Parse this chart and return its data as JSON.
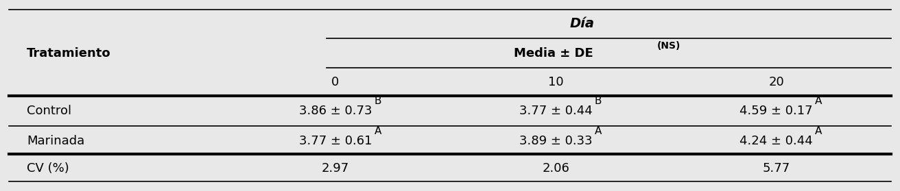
{
  "title_col": "Tratamiento",
  "dia_header": "Día",
  "media_header": "Media ± DE",
  "media_superscript": "(NS)",
  "day_cols": [
    "0",
    "10",
    "20"
  ],
  "rows": [
    {
      "label": "Control",
      "values": [
        "3.86 ± 0.73",
        "3.77 ± 0.44",
        "4.59 ± 0.17"
      ],
      "superscripts": [
        "B",
        "B",
        "A"
      ]
    },
    {
      "label": "Marinada",
      "values": [
        "3.77 ± 0.61",
        "3.89 ± 0.33",
        "4.24 ± 0.44"
      ],
      "superscripts": [
        "A",
        "A",
        "A"
      ]
    }
  ],
  "cv_label": "CV (%)",
  "cv_values": [
    "2.97",
    "2.06",
    "5.77"
  ],
  "bg_color": "#e8e8e8",
  "text_color": "#000000",
  "font_size": 13,
  "header_font_size": 13,
  "figsize": [
    13.12,
    2.79
  ],
  "dpi": 100
}
